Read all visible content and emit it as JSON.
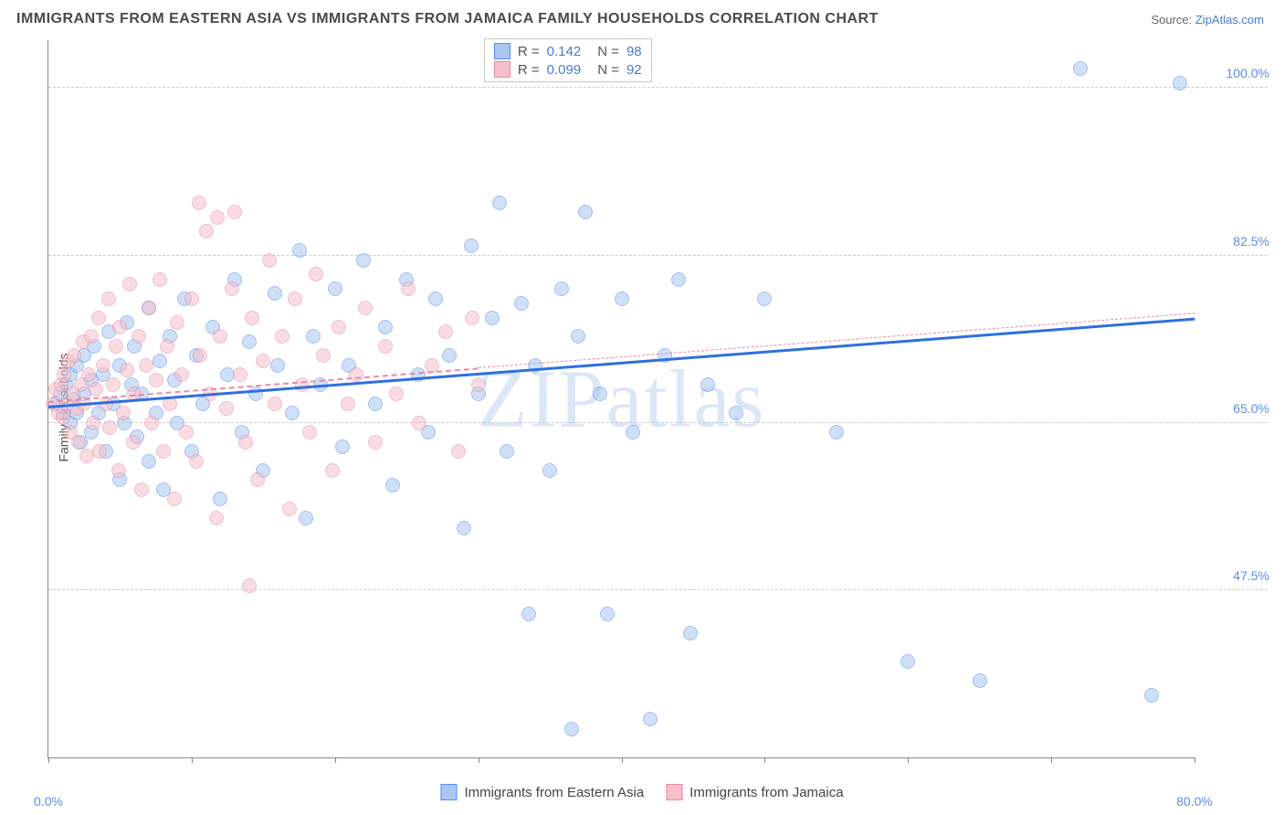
{
  "title": "IMMIGRANTS FROM EASTERN ASIA VS IMMIGRANTS FROM JAMAICA FAMILY HOUSEHOLDS CORRELATION CHART",
  "source_prefix": "Source: ",
  "source_name": "ZipAtlas.com",
  "y_axis_label": "Family Households",
  "watermark": "ZIPatlas",
  "chart": {
    "type": "scatter",
    "xlim": [
      0,
      80
    ],
    "ylim": [
      30,
      105
    ],
    "background_color": "#ffffff",
    "grid_color": "#cccccc",
    "grid_dash": "4,4",
    "y_ticks": [
      47.5,
      65.0,
      82.5,
      100.0
    ],
    "y_tick_labels": [
      "47.5%",
      "65.0%",
      "82.5%",
      "100.0%"
    ],
    "x_ticks": [
      0,
      10,
      20,
      30,
      40,
      50,
      60,
      70,
      80
    ],
    "x_tick_labels": {
      "0": "0.0%",
      "80": "80.0%"
    },
    "marker_radius": 8,
    "marker_opacity": 0.55,
    "tick_label_color": "#5b8def",
    "tick_label_fontsize": 14
  },
  "series": [
    {
      "name": "Immigrants from Eastern Asia",
      "fill_color": "#a9c7f0",
      "border_color": "#5b8def",
      "trend_color": "#2e6fe0",
      "trend_width": 3,
      "trend_dash": "none",
      "r": "0.142",
      "n": "98",
      "trend": {
        "x0": 0,
        "y0": 66.8,
        "x1": 80,
        "y1": 76.0
      },
      "points": [
        [
          0.5,
          67
        ],
        [
          0.8,
          68
        ],
        [
          1,
          66
        ],
        [
          1.2,
          69
        ],
        [
          1.5,
          65
        ],
        [
          1.5,
          70
        ],
        [
          1.8,
          67.5
        ],
        [
          2,
          71
        ],
        [
          2,
          66
        ],
        [
          2.2,
          63
        ],
        [
          2.5,
          68
        ],
        [
          2.5,
          72
        ],
        [
          3,
          64
        ],
        [
          3,
          69.5
        ],
        [
          3.2,
          73
        ],
        [
          3.5,
          66
        ],
        [
          3.8,
          70
        ],
        [
          4,
          62
        ],
        [
          4.2,
          74.5
        ],
        [
          4.5,
          67
        ],
        [
          5,
          71
        ],
        [
          5,
          59
        ],
        [
          5.3,
          65
        ],
        [
          5.5,
          75.5
        ],
        [
          5.8,
          69
        ],
        [
          6,
          73
        ],
        [
          6.2,
          63.5
        ],
        [
          6.5,
          68
        ],
        [
          7,
          77
        ],
        [
          7,
          61
        ],
        [
          7.5,
          66
        ],
        [
          7.8,
          71.5
        ],
        [
          8,
          58
        ],
        [
          8.5,
          74
        ],
        [
          8.8,
          69.5
        ],
        [
          9,
          65
        ],
        [
          9.5,
          78
        ],
        [
          10,
          62
        ],
        [
          10.3,
          72
        ],
        [
          10.8,
          67
        ],
        [
          11.5,
          75
        ],
        [
          12,
          57
        ],
        [
          12.5,
          70
        ],
        [
          13,
          80
        ],
        [
          13.5,
          64
        ],
        [
          14,
          73.5
        ],
        [
          14.5,
          68
        ],
        [
          15,
          60
        ],
        [
          15.8,
          78.5
        ],
        [
          16,
          71
        ],
        [
          17,
          66
        ],
        [
          17.5,
          83
        ],
        [
          18,
          55
        ],
        [
          18.5,
          74
        ],
        [
          19,
          69
        ],
        [
          20,
          79
        ],
        [
          20.5,
          62.5
        ],
        [
          21,
          71
        ],
        [
          22,
          82
        ],
        [
          22.8,
          67
        ],
        [
          23.5,
          75
        ],
        [
          24,
          58.5
        ],
        [
          25,
          80
        ],
        [
          25.8,
          70
        ],
        [
          26.5,
          64
        ],
        [
          27,
          78
        ],
        [
          28,
          72
        ],
        [
          29,
          54
        ],
        [
          29.5,
          83.5
        ],
        [
          30,
          68
        ],
        [
          31,
          76
        ],
        [
          31.5,
          88
        ],
        [
          32,
          62
        ],
        [
          33,
          77.5
        ],
        [
          33.5,
          45
        ],
        [
          34,
          71
        ],
        [
          35,
          60
        ],
        [
          35.8,
          79
        ],
        [
          36.5,
          33
        ],
        [
          37,
          74
        ],
        [
          37.5,
          87
        ],
        [
          38.5,
          68
        ],
        [
          39,
          45
        ],
        [
          40,
          78
        ],
        [
          40.8,
          64
        ],
        [
          42,
          34
        ],
        [
          43,
          72
        ],
        [
          44,
          80
        ],
        [
          44.8,
          43
        ],
        [
          46,
          69
        ],
        [
          48,
          66
        ],
        [
          50,
          78
        ],
        [
          55,
          64
        ],
        [
          60,
          40
        ],
        [
          65,
          38
        ],
        [
          72,
          102
        ],
        [
          77,
          36.5
        ],
        [
          79,
          100.5
        ]
      ]
    },
    {
      "name": "Immigrants from Jamaica",
      "fill_color": "#f5c0cc",
      "border_color": "#e88ba3",
      "trend_color": "#e88ba3",
      "trend_width": 2,
      "trend_dash": "6,5",
      "trend_extend_dash_x1": 80,
      "trend_extend_dash_y1": 76.5,
      "r": "0.099",
      "n": "92",
      "trend": {
        "x0": 0,
        "y0": 67.3,
        "x1": 30,
        "y1": 70.8
      },
      "points": [
        [
          0.3,
          67
        ],
        [
          0.5,
          68.5
        ],
        [
          0.7,
          66
        ],
        [
          0.9,
          69
        ],
        [
          1,
          65.5
        ],
        [
          1.1,
          70
        ],
        [
          1.3,
          67
        ],
        [
          1.4,
          71.5
        ],
        [
          1.5,
          64
        ],
        [
          1.7,
          68
        ],
        [
          1.8,
          72
        ],
        [
          2,
          66.5
        ],
        [
          2.1,
          63
        ],
        [
          2.3,
          69
        ],
        [
          2.4,
          73.5
        ],
        [
          2.5,
          67
        ],
        [
          2.7,
          61.5
        ],
        [
          2.8,
          70
        ],
        [
          3,
          74
        ],
        [
          3.1,
          65
        ],
        [
          3.3,
          68.5
        ],
        [
          3.5,
          76
        ],
        [
          3.6,
          62
        ],
        [
          3.8,
          71
        ],
        [
          4,
          67
        ],
        [
          4.2,
          78
        ],
        [
          4.3,
          64.5
        ],
        [
          4.5,
          69
        ],
        [
          4.7,
          73
        ],
        [
          4.9,
          60
        ],
        [
          5,
          75
        ],
        [
          5.2,
          66
        ],
        [
          5.5,
          70.5
        ],
        [
          5.7,
          79.5
        ],
        [
          5.9,
          63
        ],
        [
          6,
          68
        ],
        [
          6.3,
          74
        ],
        [
          6.5,
          58
        ],
        [
          6.8,
          71
        ],
        [
          7,
          77
        ],
        [
          7.2,
          65
        ],
        [
          7.5,
          69.5
        ],
        [
          7.8,
          80
        ],
        [
          8,
          62
        ],
        [
          8.3,
          73
        ],
        [
          8.5,
          67
        ],
        [
          8.8,
          57
        ],
        [
          9,
          75.5
        ],
        [
          9.3,
          70
        ],
        [
          9.6,
          64
        ],
        [
          10,
          78
        ],
        [
          10.3,
          61
        ],
        [
          10.6,
          72
        ],
        [
          11,
          85
        ],
        [
          11.3,
          68
        ],
        [
          11.7,
          55
        ],
        [
          12,
          74
        ],
        [
          12.4,
          66.5
        ],
        [
          12.8,
          79
        ],
        [
          13,
          87
        ],
        [
          13.4,
          70
        ],
        [
          13.8,
          63
        ],
        [
          14.2,
          76
        ],
        [
          14.6,
          59
        ],
        [
          15,
          71.5
        ],
        [
          15.4,
          82
        ],
        [
          15.8,
          67
        ],
        [
          16.3,
          74
        ],
        [
          16.8,
          56
        ],
        [
          17.2,
          78
        ],
        [
          17.7,
          69
        ],
        [
          18.2,
          64
        ],
        [
          18.7,
          80.5
        ],
        [
          19.2,
          72
        ],
        [
          19.8,
          60
        ],
        [
          20.3,
          75
        ],
        [
          20.9,
          67
        ],
        [
          21.5,
          70
        ],
        [
          22.1,
          77
        ],
        [
          22.8,
          63
        ],
        [
          23.5,
          73
        ],
        [
          24.3,
          68
        ],
        [
          25.1,
          79
        ],
        [
          25.9,
          65
        ],
        [
          26.8,
          71
        ],
        [
          27.7,
          74.5
        ],
        [
          28.6,
          62
        ],
        [
          29.6,
          76
        ],
        [
          30,
          69
        ],
        [
          14,
          48
        ],
        [
          10.5,
          88
        ],
        [
          11.8,
          86.5
        ]
      ]
    }
  ],
  "legend_top": {
    "r_label": "R  =",
    "n_label": "N  ="
  },
  "legend_bottom": {
    "items": [
      "Immigrants from Eastern Asia",
      "Immigrants from Jamaica"
    ]
  }
}
